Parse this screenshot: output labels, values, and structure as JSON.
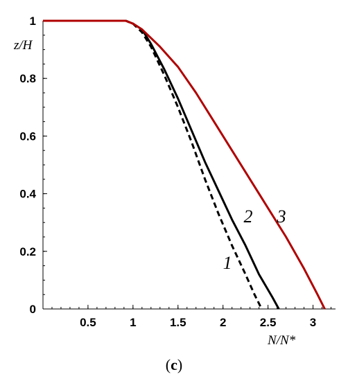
{
  "chart_data": {
    "type": "line",
    "xlabel": "N/N*",
    "ylabel": "z/H",
    "panel_label": {
      "open": "(",
      "letter": "c",
      "close": ")"
    },
    "xlim": [
      0,
      3.25
    ],
    "ylim": [
      0,
      1
    ],
    "x_ticks": [
      {
        "value": 0.5,
        "label": "0.5"
      },
      {
        "value": 1,
        "label": "1"
      },
      {
        "value": 1.5,
        "label": "1.5"
      },
      {
        "value": 2,
        "label": "2"
      },
      {
        "value": 2.5,
        "label": "2.5"
      },
      {
        "value": 3,
        "label": "3"
      }
    ],
    "y_ticks": [
      {
        "value": 0,
        "label": "0"
      },
      {
        "value": 0.2,
        "label": "0.2"
      },
      {
        "value": 0.4,
        "label": "0.4"
      },
      {
        "value": 0.6,
        "label": "0.6"
      },
      {
        "value": 0.8,
        "label": "0.8"
      },
      {
        "value": 1,
        "label": "1"
      }
    ],
    "grid": false,
    "series": [
      {
        "name": "1",
        "color": "#000000",
        "dash": "dashed",
        "label_at": [
          2.05,
          0.14
        ],
        "points": [
          [
            0,
            1
          ],
          [
            0.92,
            1
          ],
          [
            1.0,
            0.99
          ],
          [
            1.1,
            0.96
          ],
          [
            1.2,
            0.91
          ],
          [
            1.35,
            0.81
          ],
          [
            1.5,
            0.7
          ],
          [
            1.65,
            0.58
          ],
          [
            1.8,
            0.45
          ],
          [
            1.95,
            0.33
          ],
          [
            2.1,
            0.22
          ],
          [
            2.25,
            0.12
          ],
          [
            2.35,
            0.05
          ],
          [
            2.43,
            0
          ]
        ]
      },
      {
        "name": "2",
        "color": "#000000",
        "dash": "solid",
        "label_at": [
          2.28,
          0.3
        ],
        "points": [
          [
            0,
            1
          ],
          [
            0.92,
            1
          ],
          [
            1.0,
            0.99
          ],
          [
            1.1,
            0.97
          ],
          [
            1.2,
            0.92
          ],
          [
            1.35,
            0.83
          ],
          [
            1.5,
            0.73
          ],
          [
            1.65,
            0.62
          ],
          [
            1.8,
            0.51
          ],
          [
            1.95,
            0.41
          ],
          [
            2.1,
            0.31
          ],
          [
            2.25,
            0.22
          ],
          [
            2.4,
            0.12
          ],
          [
            2.55,
            0.04
          ],
          [
            2.62,
            0
          ]
        ]
      },
      {
        "name": "3",
        "color": "#b00000",
        "dash": "solid",
        "label_at": [
          2.65,
          0.3
        ],
        "points": [
          [
            0,
            1
          ],
          [
            0.92,
            1
          ],
          [
            1.0,
            0.99
          ],
          [
            1.1,
            0.97
          ],
          [
            1.3,
            0.91
          ],
          [
            1.5,
            0.84
          ],
          [
            1.7,
            0.75
          ],
          [
            1.9,
            0.65
          ],
          [
            2.1,
            0.55
          ],
          [
            2.3,
            0.45
          ],
          [
            2.5,
            0.35
          ],
          [
            2.7,
            0.25
          ],
          [
            2.9,
            0.14
          ],
          [
            3.05,
            0.05
          ],
          [
            3.13,
            0
          ]
        ]
      }
    ]
  }
}
